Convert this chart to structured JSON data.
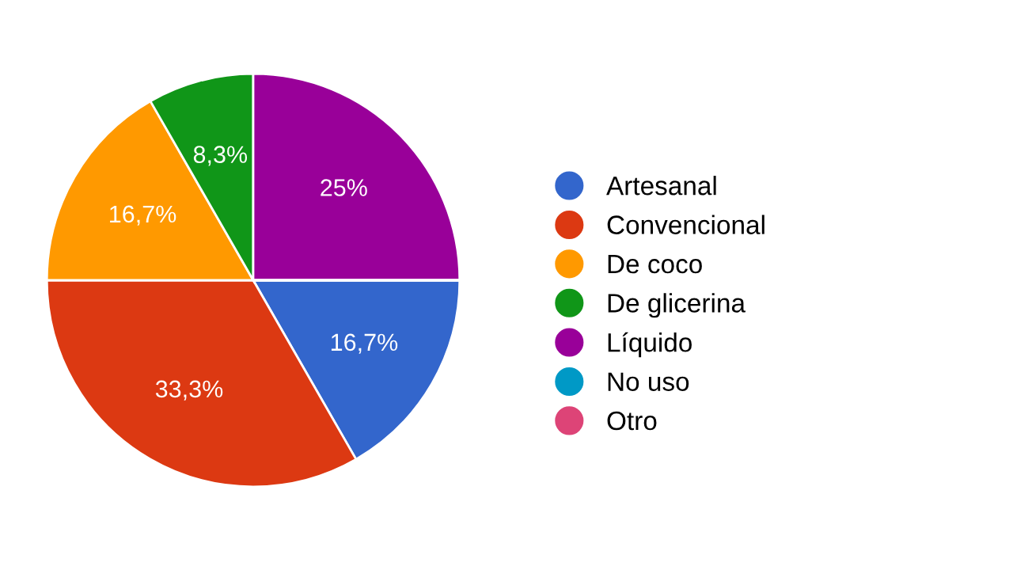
{
  "chart_data": {
    "type": "pie",
    "categories": [
      "Artesanal",
      "Convencional",
      "De coco",
      "De glicerina",
      "Líquido",
      "No uso",
      "Otro"
    ],
    "values": [
      16.7,
      33.3,
      16.7,
      8.3,
      25,
      0,
      0
    ],
    "value_labels": [
      "16,7%",
      "33,3%",
      "16,7%",
      "8,3%",
      "25%",
      null,
      null
    ],
    "colors": [
      "#3366cc",
      "#dc3912",
      "#ff9900",
      "#109618",
      "#990099",
      "#0099c6",
      "#dd4477"
    ],
    "legend": "right"
  }
}
